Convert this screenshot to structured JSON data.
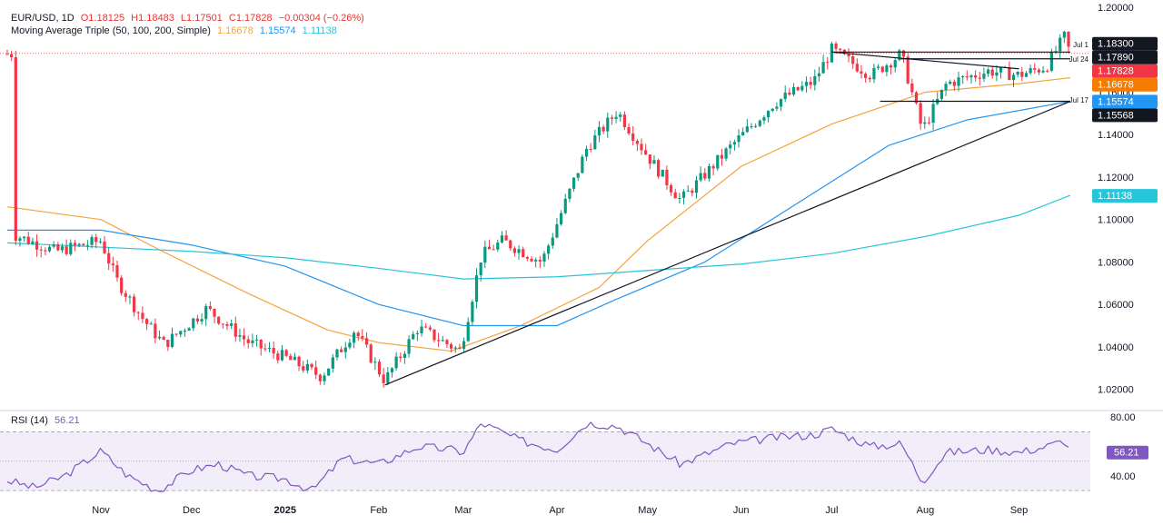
{
  "header": {
    "symbol": "EUR/USD, 1D",
    "open": "O1.18125",
    "high": "H1.18483",
    "low": "L1.17501",
    "close": "C1.17828",
    "change": "−0.00304 (−0.26%)",
    "ma_title": "Moving Average Triple (50, 100, 200, Simple)",
    "ma50": "1.16678",
    "ma100": "1.15574",
    "ma200": "1.11138"
  },
  "rsi_header": {
    "title": "RSI (14)",
    "value": "56.21"
  },
  "colors": {
    "up": "#089981",
    "down": "#f23645",
    "ma50": "#f5a33b",
    "ma100": "#2196f3",
    "ma200": "#26c6da",
    "rsi": "#7e57c2",
    "trend": "#131722"
  },
  "chart_data": [
    {
      "type": "candlestick",
      "ylim": [
        1.01,
        1.2
      ],
      "y_ticks": [
        "1.20000",
        "1.18000",
        "1.16000",
        "1.14000",
        "1.12000",
        "1.10000",
        "1.08000",
        "1.06000",
        "1.04000",
        "1.02000"
      ],
      "x_ticks": [
        "Nov",
        "Dec",
        "2025",
        "Feb",
        "Mar",
        "Apr",
        "May",
        "Jun",
        "Jul",
        "Aug",
        "Sep"
      ],
      "ohlc_anchor_points": [
        [
          "Oct 3",
          1.093
        ],
        [
          "Oct 17",
          1.085
        ],
        [
          "Nov 1",
          1.09
        ],
        [
          "Nov 6",
          1.072
        ],
        [
          "Nov 15",
          1.053
        ],
        [
          "Nov 22",
          1.041
        ],
        [
          "Dec 6",
          1.058
        ],
        [
          "Dec 20",
          1.042
        ],
        [
          "Jan 1",
          1.035
        ],
        [
          "Jan 13",
          1.026
        ],
        [
          "Jan 24",
          1.048
        ],
        [
          "Feb 3",
          1.024
        ],
        [
          "Feb 14",
          1.049
        ],
        [
          "Feb 28",
          1.038
        ],
        [
          "Mar 7",
          1.083
        ],
        [
          "Mar 14",
          1.09
        ],
        [
          "Mar 27",
          1.08
        ],
        [
          "Apr 11",
          1.134
        ],
        [
          "Apr 21",
          1.151
        ],
        [
          "May 1",
          1.13
        ],
        [
          "May 12",
          1.109
        ],
        [
          "May 29",
          1.135
        ],
        [
          "Jun 12",
          1.155
        ],
        [
          "Jun 25",
          1.165
        ],
        [
          "Jul 1",
          1.18
        ],
        [
          "Jul 14",
          1.168
        ],
        [
          "Jul 24",
          1.178
        ],
        [
          "Jul 31",
          1.142
        ],
        [
          "Aug 8",
          1.164
        ],
        [
          "Aug 22",
          1.17
        ],
        [
          "Sep 1",
          1.168
        ],
        [
          "Sep 10",
          1.172
        ],
        [
          "Sep 16",
          1.186
        ],
        [
          "Sep 18",
          1.178
        ]
      ],
      "price_tags": [
        {
          "value": "1.18300",
          "price": 1.183,
          "style": "dark"
        },
        {
          "value": "1.17890",
          "price": 1.1789,
          "style": "dark"
        },
        {
          "value": "1.17828",
          "price": 1.17828,
          "style": "red"
        },
        {
          "value": "1.16678",
          "price": 1.16678,
          "style": "orange"
        },
        {
          "value": "1.15574",
          "price": 1.15574,
          "style": "blue"
        },
        {
          "value": "1.15568",
          "price": 1.15568,
          "style": "dark"
        },
        {
          "value": "1.11138",
          "price": 1.11138,
          "style": "teal"
        }
      ],
      "level_labels": [
        {
          "text": "Jul 1",
          "price": 1.1824
        },
        {
          "text": "Jul 24",
          "price": 1.1757
        },
        {
          "text": "Jul 17",
          "price": 1.1563
        }
      ],
      "series": [
        {
          "name": "MA 50",
          "points": [
            [
              "Oct 1",
              1.106
            ],
            [
              "Nov 1",
              1.1
            ],
            [
              "Nov 20",
              1.086
            ],
            [
              "Dec 20",
              1.065
            ],
            [
              "Jan 15",
              1.048
            ],
            [
              "Feb 1",
              1.042
            ],
            [
              "Feb 25",
              1.038
            ],
            [
              "Mar 20",
              1.05
            ],
            [
              "Apr 15",
              1.068
            ],
            [
              "May 1",
              1.09
            ],
            [
              "Jun 1",
              1.125
            ],
            [
              "Jul 1",
              1.145
            ],
            [
              "Aug 1",
              1.16
            ],
            [
              "Sep 1",
              1.164
            ],
            [
              "Sep 18",
              1.1668
            ]
          ]
        },
        {
          "name": "MA 100",
          "points": [
            [
              "Oct 1",
              1.095
            ],
            [
              "Nov 1",
              1.095
            ],
            [
              "Dec 1",
              1.088
            ],
            [
              "Jan 1",
              1.078
            ],
            [
              "Feb 1",
              1.06
            ],
            [
              "Mar 1",
              1.05
            ],
            [
              "Apr 1",
              1.05
            ],
            [
              "Apr 20",
              1.062
            ],
            [
              "May 20",
              1.08
            ],
            [
              "Jun 20",
              1.108
            ],
            [
              "Jul 20",
              1.135
            ],
            [
              "Aug 15",
              1.147
            ],
            [
              "Sep 18",
              1.1557
            ]
          ]
        },
        {
          "name": "MA 200",
          "points": [
            [
              "Oct 1",
              1.089
            ],
            [
              "Nov 1",
              1.087
            ],
            [
              "Dec 1",
              1.085
            ],
            [
              "Jan 1",
              1.082
            ],
            [
              "Feb 1",
              1.077
            ],
            [
              "Mar 1",
              1.072
            ],
            [
              "Apr 1",
              1.073
            ],
            [
              "May 1",
              1.076
            ],
            [
              "Jun 1",
              1.079
            ],
            [
              "Jul 1",
              1.084
            ],
            [
              "Aug 1",
              1.092
            ],
            [
              "Sep 1",
              1.102
            ],
            [
              "Sep 18",
              1.1114
            ]
          ]
        }
      ],
      "lines": [
        {
          "name": "rising trendline",
          "from": [
            "Feb 3",
            1.022
          ],
          "to": [
            "Sep 18",
            1.1557
          ]
        },
        {
          "name": "descending trendline",
          "from": [
            "Jul 1",
            1.1789
          ],
          "to": [
            "Sep 1",
            1.171
          ]
        },
        {
          "name": "Jul 1 level",
          "from": [
            "Jul 1",
            1.1789
          ],
          "to": [
            "Sep 18",
            1.1789
          ]
        },
        {
          "name": "Jul 24 level",
          "from": [
            "Jul 24",
            1.1757
          ],
          "to": [
            "Sep 18",
            1.1757
          ]
        },
        {
          "name": "Jul 17 level",
          "from": [
            "Jul 17",
            1.1557
          ],
          "to": [
            "Sep 18",
            1.1557
          ]
        }
      ]
    },
    {
      "type": "line",
      "title": "RSI (14)",
      "ylim": [
        27,
        82
      ],
      "y_ticks": [
        "80.00",
        "40.00"
      ],
      "band": [
        30,
        70
      ],
      "midline": 50,
      "series": [
        {
          "name": "RSI",
          "points": [
            [
              "Oct 1",
              37
            ],
            [
              "Oct 10",
              32
            ],
            [
              "Oct 20",
              40
            ],
            [
              "Nov 1",
              57
            ],
            [
              "Nov 10",
              40
            ],
            [
              "Nov 20",
              30
            ],
            [
              "Dec 1",
              44
            ],
            [
              "Dec 10",
              48
            ],
            [
              "Dec 20",
              40
            ],
            [
              "Jan 1",
              38
            ],
            [
              "Jan 10",
              30
            ],
            [
              "Jan 20",
              52
            ],
            [
              "Feb 1",
              48
            ],
            [
              "Feb 14",
              60
            ],
            [
              "Feb 25",
              58
            ],
            [
              "Mar 1",
              56
            ],
            [
              "Mar 7",
              76
            ],
            [
              "Mar 20",
              64
            ],
            [
              "Apr 1",
              58
            ],
            [
              "Apr 11",
              76
            ],
            [
              "Apr 21",
              74
            ],
            [
              "May 1",
              62
            ],
            [
              "May 12",
              48
            ],
            [
              "May 29",
              62
            ],
            [
              "Jun 12",
              66
            ],
            [
              "Jun 25",
              68
            ],
            [
              "Jul 1",
              72
            ],
            [
              "Jul 14",
              60
            ],
            [
              "Jul 24",
              62
            ],
            [
              "Jul 31",
              36
            ],
            [
              "Aug 8",
              56
            ],
            [
              "Aug 22",
              58
            ],
            [
              "Sep 1",
              56
            ],
            [
              "Sep 10",
              60
            ],
            [
              "Sep 16",
              64
            ],
            [
              "Sep 18",
              56.2
            ]
          ]
        }
      ]
    }
  ]
}
